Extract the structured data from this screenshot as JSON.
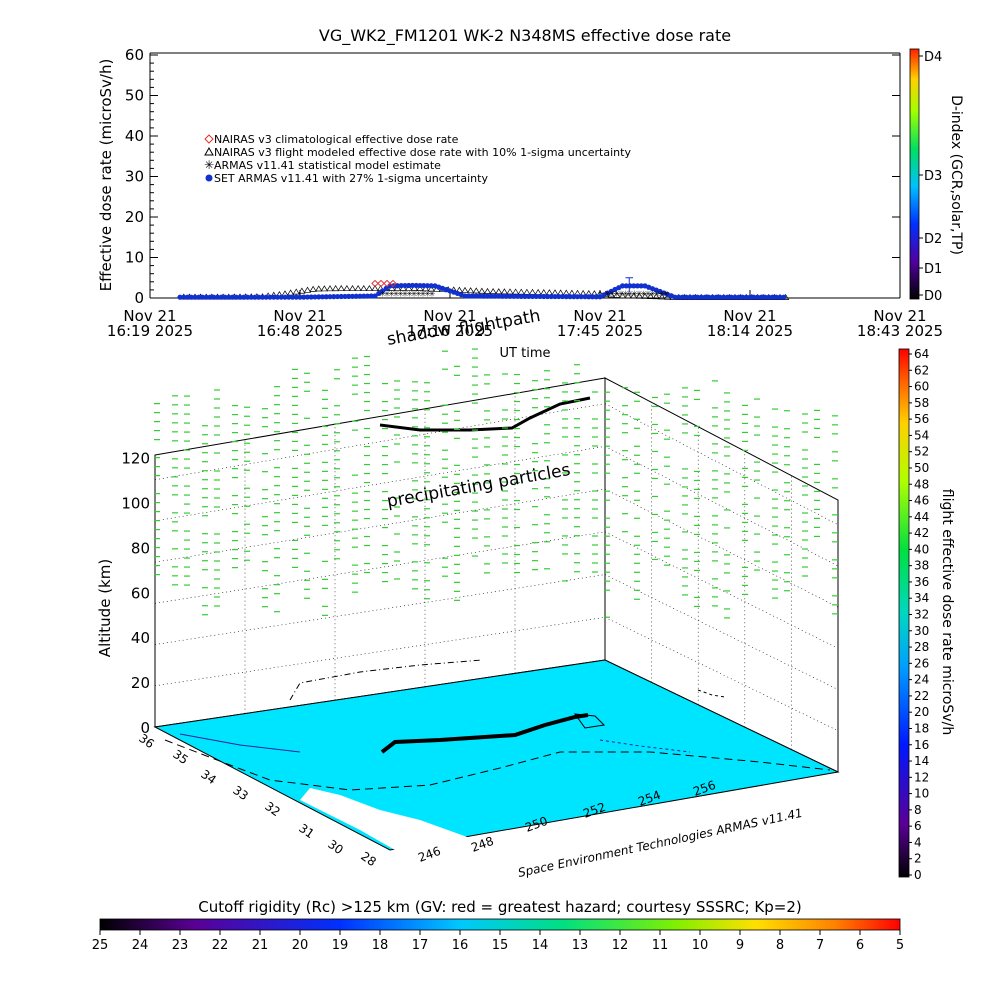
{
  "chart_data": [
    {
      "type": "scatter",
      "title": "VG_WK2_FM1201    WK-2 N348MS effective dose rate",
      "ylabel": "Effective dose rate (microSv/h)",
      "xlabel": "UT time",
      "ylim": [
        0,
        60
      ],
      "yticks": [
        "0",
        "10",
        "20",
        "30",
        "40",
        "50",
        "60"
      ],
      "xticks": [
        {
          "l1": "Nov 21",
          "l2": "16:19 2025"
        },
        {
          "l1": "Nov 21",
          "l2": "16:48 2025"
        },
        {
          "l1": "Nov 21",
          "l2": "17:16 2025"
        },
        {
          "l1": "Nov 21",
          "l2": "17:45 2025"
        },
        {
          "l1": "Nov 21",
          "l2": "18:14 2025"
        },
        {
          "l1": "Nov 21",
          "l2": "18:43 2025"
        }
      ],
      "legend": [
        {
          "label": "NAIRAS v3 climatological effective dose rate",
          "color": "#e03030",
          "marker": "diamond"
        },
        {
          "label": "NAIRAS v3 flight modeled effective dose rate with 10% 1-sigma uncertainty",
          "color": "#000000",
          "marker": "triangle"
        },
        {
          "label": "ARMAS v11.41 statistical model estimate",
          "color": "#33cc33",
          "marker": "star"
        },
        {
          "label": "SET ARMAS v11.41 with 27% 1-sigma uncertainty",
          "color": "#1030d0",
          "marker": "dot"
        }
      ],
      "legend_position": "top-left",
      "series": [
        {
          "points": [
            [
              0.05,
              0.2
            ],
            [
              0.1,
              0.2
            ],
            [
              0.15,
              0.3
            ],
            [
              0.18,
              1.0
            ],
            [
              0.22,
              2.2
            ],
            [
              0.25,
              2.3
            ],
            [
              0.3,
              2.3
            ],
            [
              0.35,
              2.4
            ],
            [
              0.4,
              2.0
            ],
            [
              0.45,
              1.6
            ],
            [
              0.5,
              1.4
            ],
            [
              0.55,
              1.2
            ],
            [
              0.6,
              1.0
            ],
            [
              0.63,
              0.5
            ],
            [
              0.66,
              0.4
            ],
            [
              0.7,
              0.1
            ],
            [
              0.75,
              0.1
            ],
            [
              0.8,
              0.1
            ],
            [
              0.85,
              0.1
            ]
          ]
        },
        {
          "points": [
            [
              0.05,
              0.2
            ],
            [
              0.2,
              0.2
            ],
            [
              0.3,
              0.5
            ],
            [
              0.32,
              3.0
            ],
            [
              0.35,
              3.1
            ],
            [
              0.38,
              3.0
            ],
            [
              0.42,
              0.5
            ],
            [
              0.5,
              0.4
            ],
            [
              0.6,
              0.3
            ],
            [
              0.63,
              3.0
            ],
            [
              0.66,
              3.0
            ],
            [
              0.7,
              0.2
            ],
            [
              0.85,
              0.2
            ]
          ]
        }
      ],
      "dindex_scale": {
        "title": "D-index (GCR,solar,TP)",
        "ticks": [
          "D0",
          "D1",
          "D2",
          "D3",
          "D4"
        ]
      }
    },
    {
      "type": "3d-trajectory",
      "zlabel": "Altitude (km)",
      "zticks": [
        "0",
        "20",
        "40",
        "60",
        "80",
        "100",
        "120"
      ],
      "lon_ticks": [
        "246",
        "248",
        "250",
        "252",
        "254",
        "256"
      ],
      "lat_ticks": [
        "28",
        "30",
        "31",
        "32",
        "33",
        "34",
        "35",
        "36"
      ],
      "annotations": [
        "shadow",
        "flightpath",
        "precipitating particles"
      ],
      "credit": "Space Environment Technologies ARMAS v11.41",
      "dose_scale": {
        "title": "flight effective dose rate microSv/h",
        "ticks": [
          "0",
          "2",
          "4",
          "6",
          "8",
          "10",
          "12",
          "14",
          "16",
          "18",
          "20",
          "22",
          "24",
          "26",
          "28",
          "30",
          "32",
          "34",
          "36",
          "38",
          "40",
          "42",
          "44",
          "46",
          "48",
          "50",
          "52",
          "54",
          "56",
          "58",
          "60",
          "62",
          "64"
        ]
      }
    }
  ],
  "rigidity": {
    "title": "Cutoff rigidity (Rc) >125 km (GV: red = greatest hazard; courtesy SSSRC; Kp=2)",
    "ticks": [
      "25",
      "24",
      "23",
      "22",
      "21",
      "20",
      "19",
      "18",
      "17",
      "16",
      "15",
      "14",
      "13",
      "12",
      "11",
      "10",
      "9",
      "8",
      "7",
      "6",
      "5"
    ]
  }
}
